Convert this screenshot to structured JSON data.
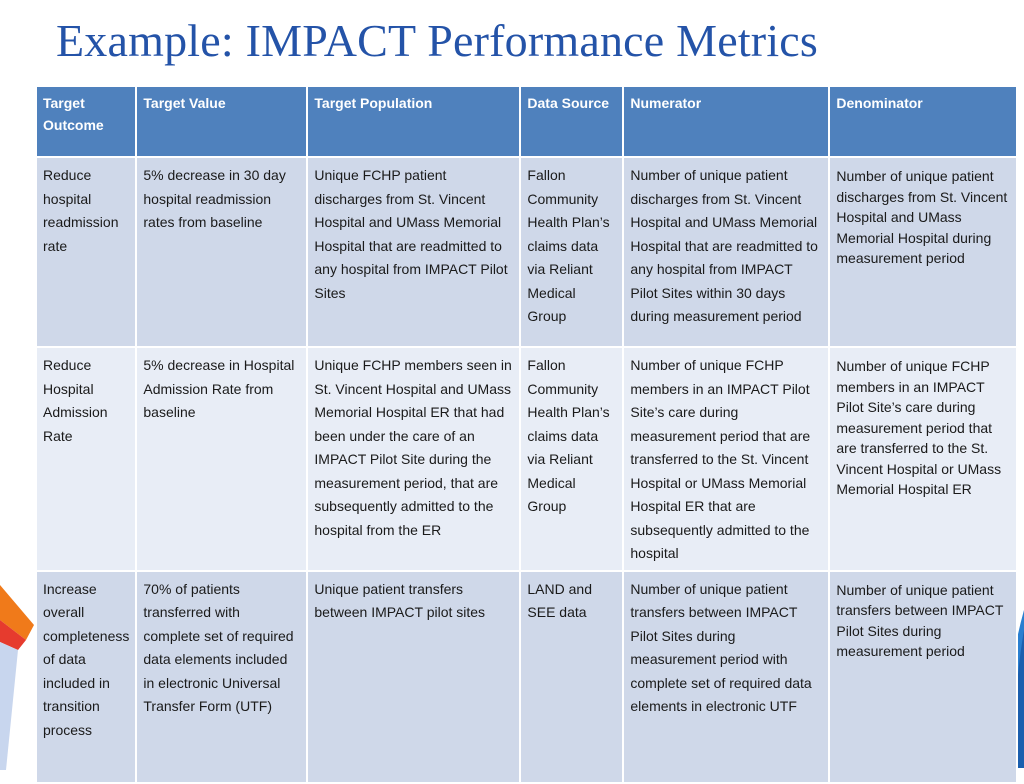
{
  "slide": {
    "title": "Example: IMPACT Performance Metrics"
  },
  "table": {
    "headers": [
      "Target Outcome",
      "Target Value",
      "Target Population",
      "Data Source",
      "Numerator",
      "Denominator"
    ],
    "rows": [
      [
        "Reduce hospital readmission rate",
        "5% decrease in 30 day hospital readmission rates from baseline",
        "Unique FCHP patient discharges from  St. Vincent Hospital and UMass Memorial Hospital that are readmitted to any hospital from IMPACT Pilot Sites",
        "Fallon Community Health Plan’s claims data via Reliant Medical Group",
        "Number of unique patient discharges from  St. Vincent Hospital and UMass Memorial Hospital that are readmitted to any hospital from IMPACT Pilot Sites within 30 days during measurement period",
        "Number of unique patient discharges from St. Vincent Hospital and UMass Memorial Hospital during measurement period"
      ],
      [
        "Reduce Hospital Admission Rate",
        "5% decrease in Hospital Admission Rate from baseline",
        "Unique FCHP members seen in St. Vincent Hospital and UMass Memorial Hospital ER that had been under the care of an IMPACT Pilot Site during the measurement period, that are subsequently admitted to the hospital from the ER",
        "Fallon Community Health Plan’s claims data via Reliant Medical Group",
        "Number of unique FCHP members in an IMPACT Pilot Site’s care during measurement period  that are transferred to the St. Vincent Hospital or UMass Memorial Hospital ER that are subsequently admitted to the hospital",
        "Number of unique FCHP members in an IMPACT Pilot Site’s care during measurement period  that are transferred to the St. Vincent Hospital or UMass Memorial Hospital ER"
      ],
      [
        "Increase overall completeness of data included in transition process",
        "70% of patients transferred with complete set of required data elements included in electronic Universal Transfer Form (UTF)",
        "Unique patient transfers between IMPACT pilot sites",
        "LAND and SEE data",
        "Number of unique patient transfers between IMPACT Pilot Sites during measurement period with complete set of required data elements in electronic UTF",
        "Number of unique patient transfers between IMPACT Pilot Sites during measurement period"
      ]
    ]
  },
  "decor": {
    "left_swoosh_color": "#f07a1a",
    "right_swoosh_color": "#2a7fd0"
  }
}
